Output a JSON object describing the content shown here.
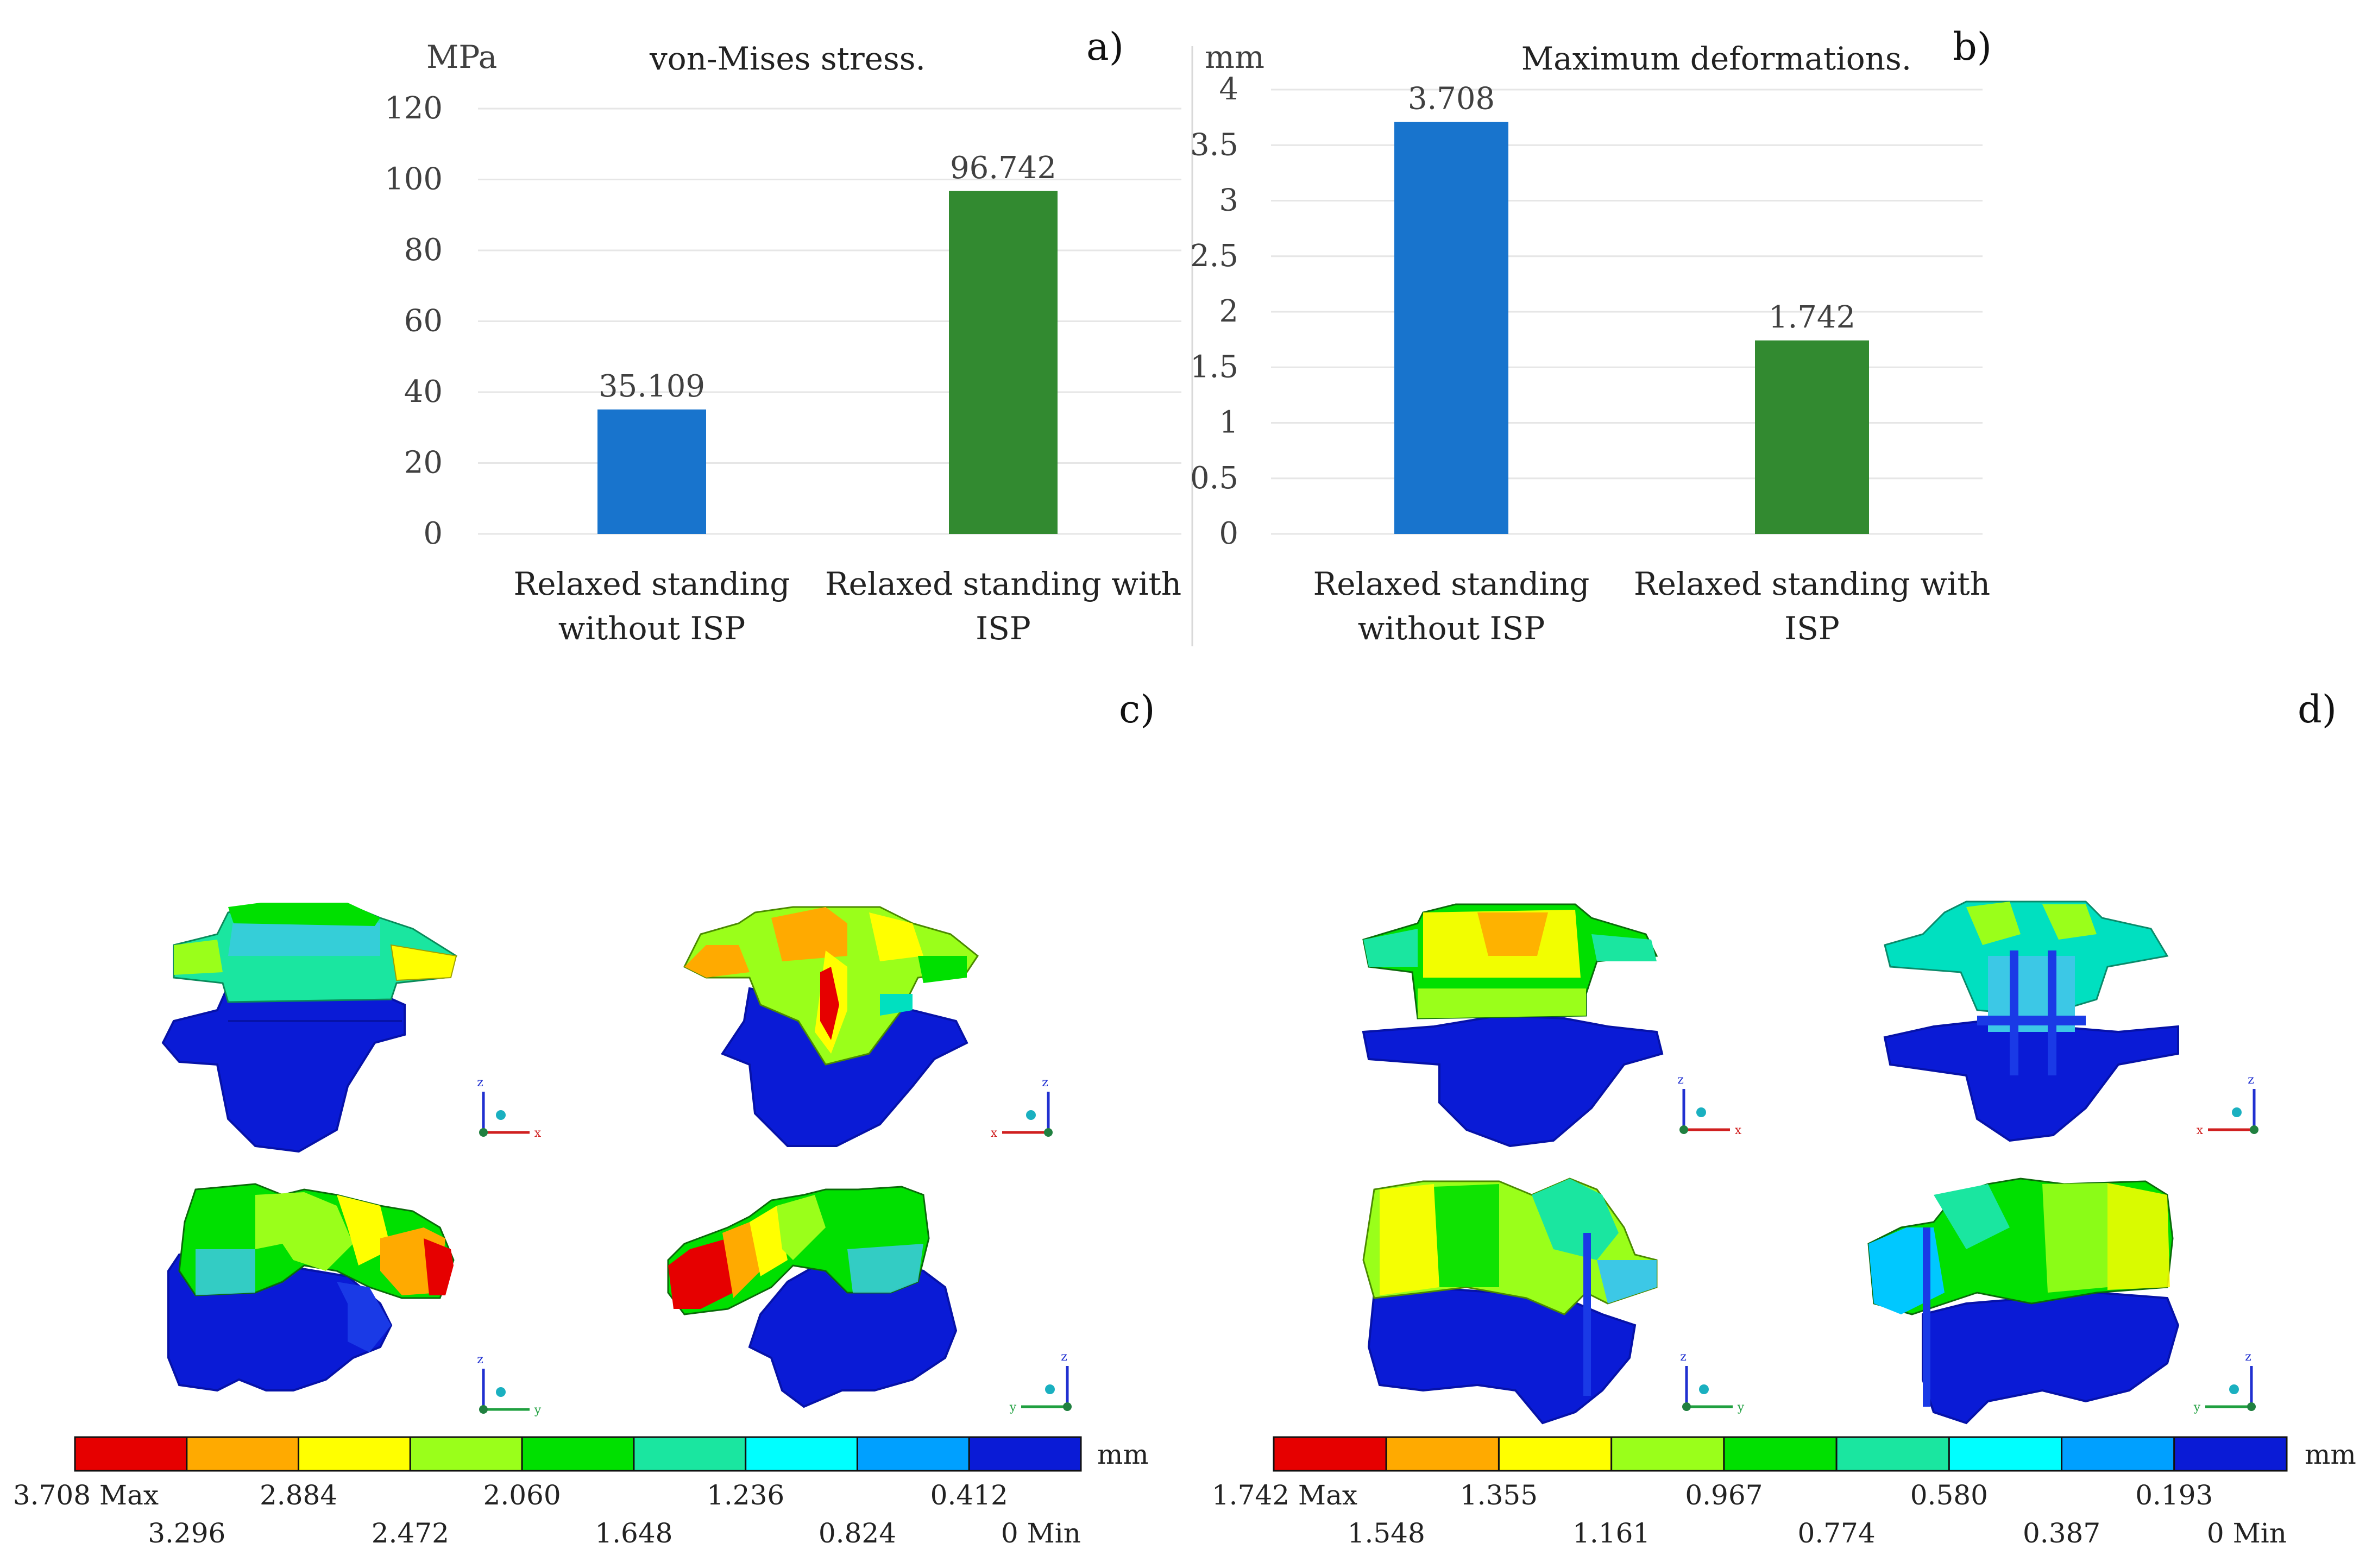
{
  "panel_labels": {
    "a": "a)",
    "b": "b)",
    "c": "c)",
    "d": "d)"
  },
  "colors": {
    "blue_bar": "#1874CD",
    "green_bar": "#328A30",
    "grid": "#E6E6E6",
    "axis_text": "#404040",
    "blue_fe": "#0A1BD6",
    "blue_fe_dark": "#0612A8"
  },
  "chart_data": [
    {
      "panel": "a",
      "type": "bar",
      "title": "von-Mises stress.",
      "ylabel": "MPa",
      "xlabel": "",
      "ylim": [
        0,
        120
      ],
      "yticks": [
        "0",
        "20",
        "40",
        "60",
        "80",
        "100",
        "120"
      ],
      "ytick_values": [
        0,
        20,
        40,
        60,
        80,
        100,
        120
      ],
      "categories": [
        [
          "Relaxed standing",
          "without ISP"
        ],
        [
          "Relaxed standing with",
          "ISP"
        ]
      ],
      "values": [
        35.109,
        96.742
      ],
      "value_labels": [
        "35.109",
        "96.742"
      ],
      "bar_colors": [
        "#1874CD",
        "#328A30"
      ],
      "grid": true
    },
    {
      "panel": "b",
      "type": "bar",
      "title": "Maximum deformations.",
      "ylabel": "mm",
      "xlabel": "",
      "ylim": [
        0,
        4
      ],
      "yticks": [
        "0",
        "0.5",
        "1",
        "1.5",
        "2",
        "2.5",
        "3",
        "3.5",
        "4"
      ],
      "ytick_values": [
        0,
        0.5,
        1,
        1.5,
        2,
        2.5,
        3,
        3.5,
        4
      ],
      "categories": [
        [
          "Relaxed standing",
          "without ISP"
        ],
        [
          "Relaxed standing with",
          "ISP"
        ]
      ],
      "values": [
        3.708,
        1.742
      ],
      "value_labels": [
        "3.708",
        "1.742"
      ],
      "bar_colors": [
        "#1874CD",
        "#328A30"
      ],
      "grid": true
    }
  ],
  "legend_c": {
    "unit": "mm",
    "colors": [
      "#E60000",
      "#FFAA00",
      "#FFFF00",
      "#9AFF1A",
      "#00E000",
      "#1AE6A0",
      "#00FFFF",
      "#00A0FF",
      "#0A1BD6"
    ],
    "top_labels": [
      "3.708 Max",
      "2.884",
      "2.060",
      "1.236",
      "0.412"
    ],
    "bottom_labels": [
      "3.296",
      "2.472",
      "1.648",
      "0.824",
      "0 Min"
    ]
  },
  "legend_d": {
    "unit": "mm",
    "colors": [
      "#E60000",
      "#FFAA00",
      "#FFFF00",
      "#9AFF1A",
      "#00E000",
      "#1AE6A0",
      "#00FFFF",
      "#00A0FF",
      "#0A1BD6"
    ],
    "top_labels": [
      "1.742 Max",
      "1.355",
      "0.967",
      "0.580",
      "0.193"
    ],
    "bottom_labels": [
      "1.548",
      "1.161",
      "0.774",
      "0.387",
      "0 Min"
    ]
  },
  "triad_labels": {
    "z": "z",
    "x": "x",
    "y": "y"
  }
}
